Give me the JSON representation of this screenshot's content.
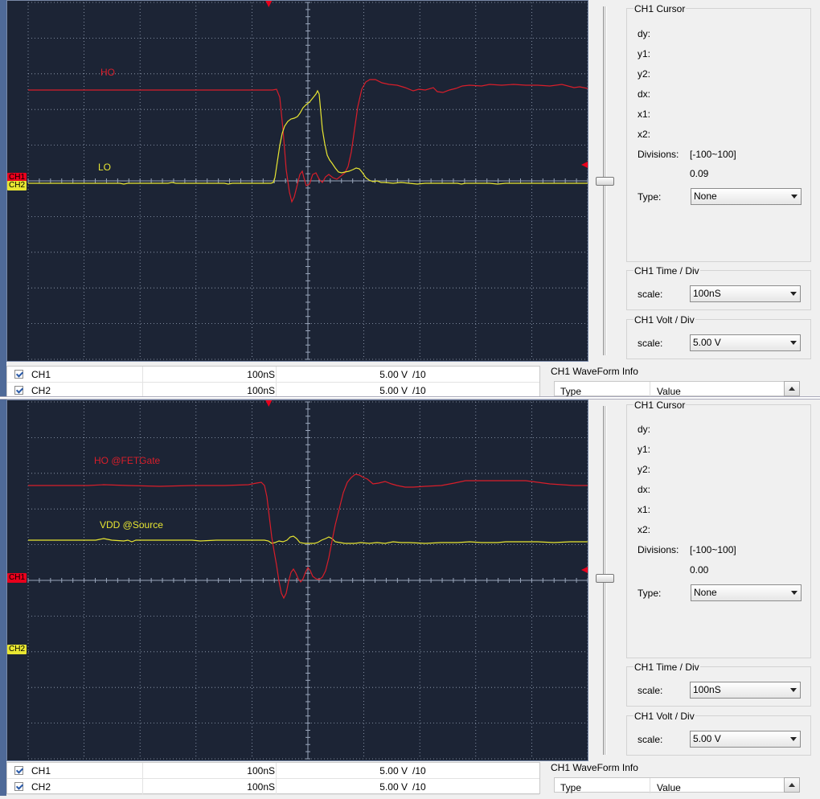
{
  "panes": [
    {
      "trace_labels": {
        "ch1": "HO",
        "ch2": "LO"
      },
      "channel_markers": {
        "ch1": "CH1",
        "ch2": "CH2"
      },
      "cursor": {
        "title": "CH1 Cursor",
        "dy": "dy:",
        "y1": "y1:",
        "y2": "y2:",
        "dx": "dx:",
        "x1": "x1:",
        "x2": "x2:",
        "divisions_label": "Divisions:",
        "divisions_range": "[-100~100]",
        "divisions_value": "0.09",
        "type_label": "Type:",
        "type_value": "None"
      },
      "time_div": {
        "title": "CH1 Time / Div",
        "scale_label": "scale:",
        "value": "100nS"
      },
      "volt_div": {
        "title": "CH1 Volt / Div",
        "scale_label": "scale:",
        "value": "5.00 V"
      },
      "channels": [
        {
          "name": "CH1",
          "time": "100nS",
          "volt": "5.00 V",
          "probe": "/10"
        },
        {
          "name": "CH2",
          "time": "100nS",
          "volt": "5.00 V",
          "probe": "/10"
        }
      ],
      "waveform_info": {
        "title": "CH1 WaveForm Info",
        "col_type": "Type",
        "col_value": "Value"
      }
    },
    {
      "trace_labels": {
        "ch1": "HO @FETGate",
        "ch2": "VDD @Source"
      },
      "channel_markers": {
        "ch1": "CH1",
        "ch2": "CH2"
      },
      "cursor": {
        "title": "CH1 Cursor",
        "dy": "dy:",
        "y1": "y1:",
        "y2": "y2:",
        "dx": "dx:",
        "x1": "x1:",
        "x2": "x2:",
        "divisions_label": "Divisions:",
        "divisions_range": "[-100~100]",
        "divisions_value": "0.00",
        "type_label": "Type:",
        "type_value": "None"
      },
      "time_div": {
        "title": "CH1 Time / Div",
        "scale_label": "scale:",
        "value": "100nS"
      },
      "volt_div": {
        "title": "CH1 Volt / Div",
        "scale_label": "scale:",
        "value": "5.00 V"
      },
      "channels": [
        {
          "name": "CH1",
          "time": "100nS",
          "volt": "5.00 V",
          "probe": "/10"
        },
        {
          "name": "CH2",
          "time": "100nS",
          "volt": "5.00 V",
          "probe": "/10"
        }
      ],
      "waveform_info": {
        "title": "CH1 WaveForm Info",
        "col_type": "Type",
        "col_value": "Value"
      }
    }
  ],
  "colors": {
    "scope_bg": "#1c2435",
    "grid": "#9aa6bb",
    "ch1": "#d81e2a",
    "ch2": "#e8e632",
    "marker": "#e8001c"
  }
}
